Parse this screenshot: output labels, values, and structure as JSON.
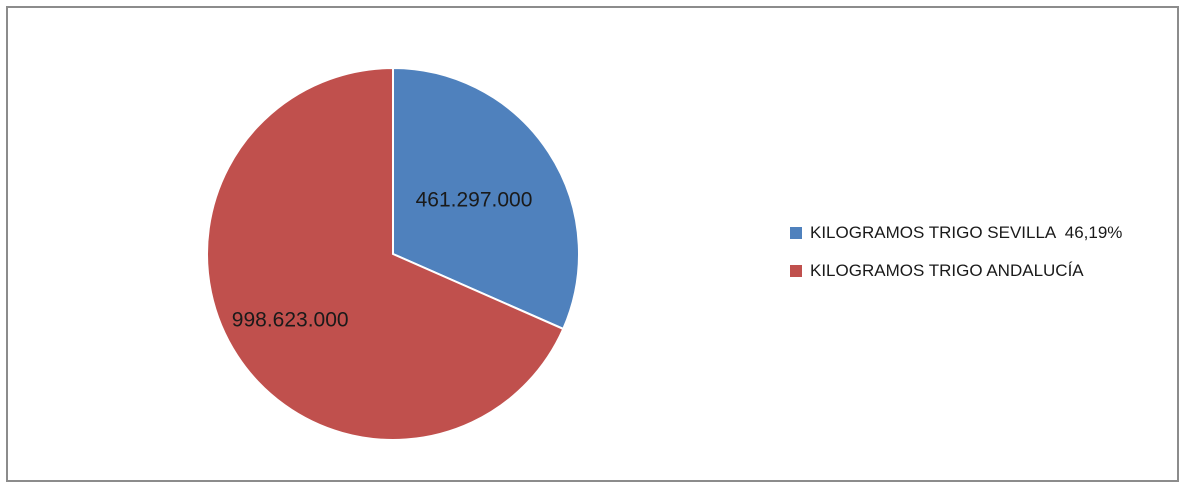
{
  "chart_data": {
    "type": "pie",
    "title": "",
    "categories": [
      "KILOGRAMOS TRIGO SEVILLA  46,19%",
      "KILOGRAMOS TRIGO ANDALUCÍA"
    ],
    "values": [
      461297000,
      998623000
    ],
    "data_labels": [
      "461.297.000",
      "998.623.000"
    ],
    "colors": [
      "#4f81bd",
      "#c0504d"
    ],
    "start_angle_deg": 0,
    "direction": "clockwise",
    "legend_position": "right"
  }
}
